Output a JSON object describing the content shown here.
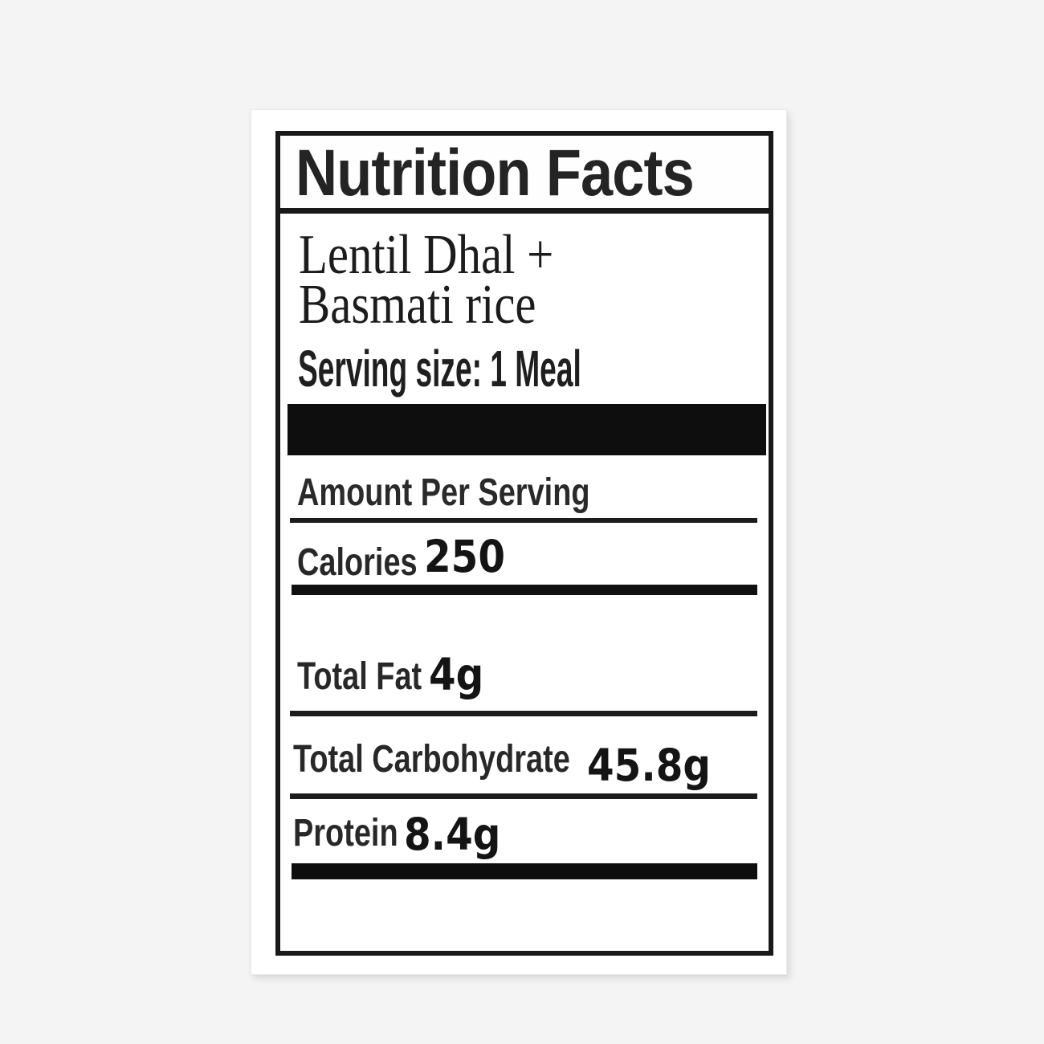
{
  "page": {
    "background": "#f4f4f5"
  },
  "nutrition_label": {
    "title": "Nutrition Facts",
    "product_name": {
      "line1": "Lentil Dhal +",
      "line2": "Basmati rice"
    },
    "serving_size": "Serving size: 1 Meal",
    "amount_per_serving": "Amount Per Serving",
    "rows": {
      "calories": {
        "label": "Calories",
        "value": "250"
      },
      "total_fat": {
        "label": "Total Fat",
        "value": "4g"
      },
      "total_carbohydrate": {
        "label": "Total Carbohydrate",
        "value": "45.8g"
      },
      "protein": {
        "label": "Protein",
        "value": "8.4g"
      }
    },
    "colors": {
      "ink": "#1a1a1a",
      "bar": "#0e0e0e",
      "card": "#ffffff",
      "page_bg": "#f4f4f5"
    }
  }
}
